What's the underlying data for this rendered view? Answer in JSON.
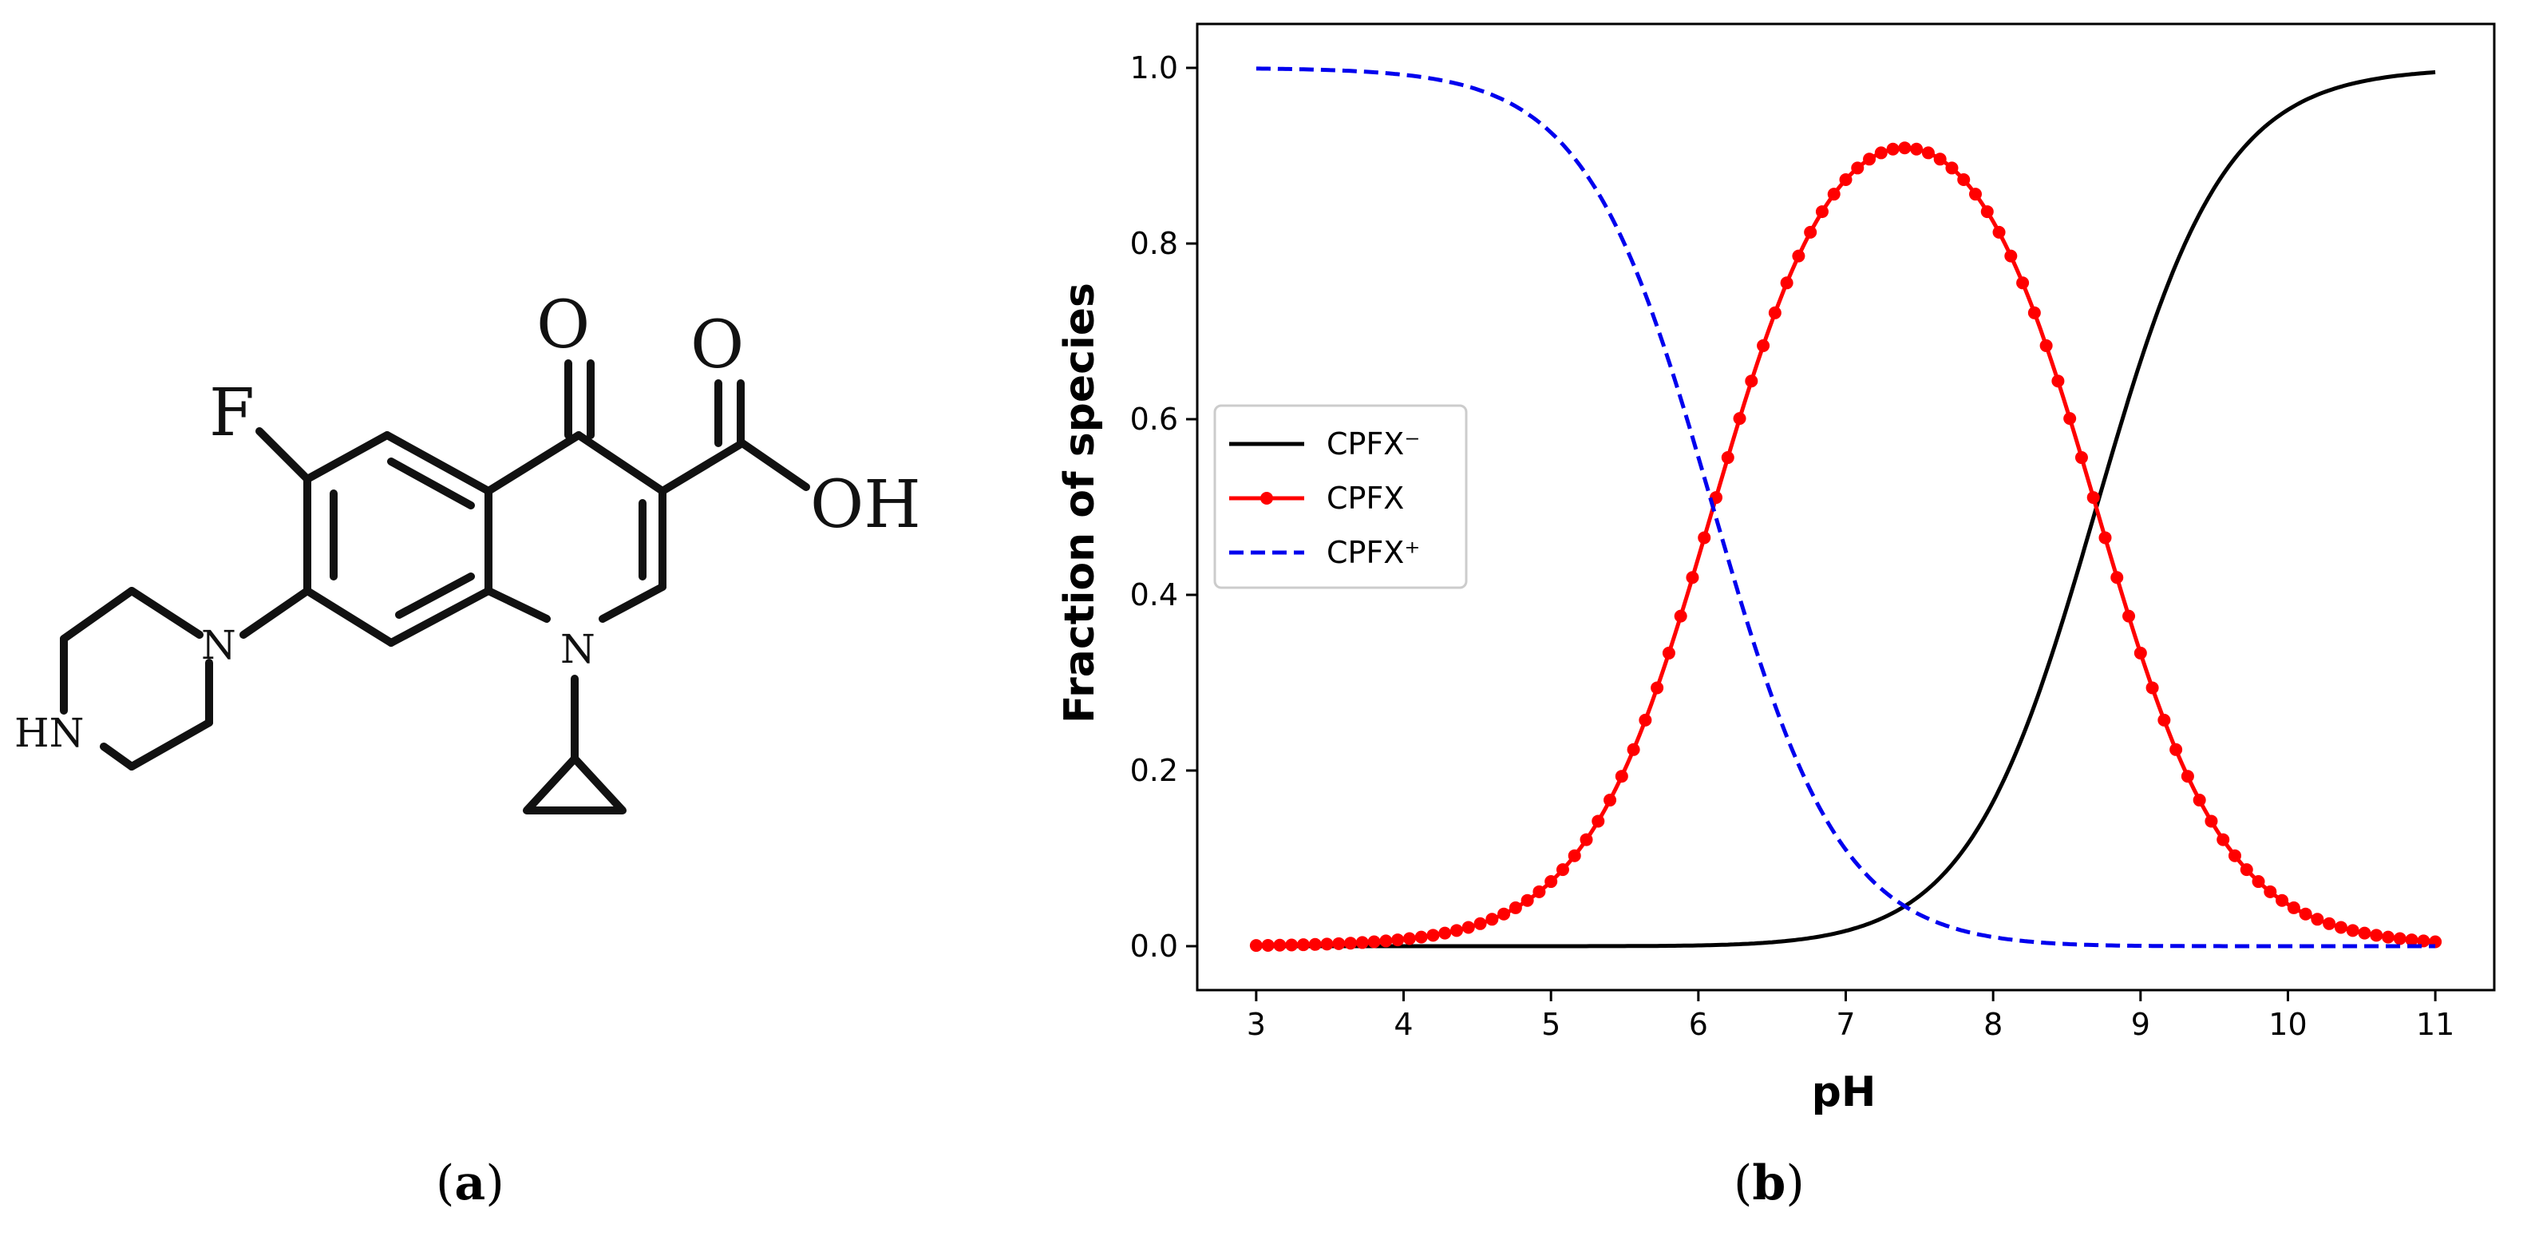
{
  "panel_a": {
    "label_open": "(",
    "letter": "a",
    "label_close": ")",
    "atoms": {
      "F": "F",
      "O_ketone": "O",
      "O_acid": "O",
      "OH": "OH",
      "N_pip": "N",
      "HN": "HN",
      "N_ring": "N"
    }
  },
  "panel_b": {
    "label_open": "(",
    "letter": "b",
    "label_close": ")"
  },
  "chart_data": {
    "type": "line",
    "title": "",
    "xlabel": "pH",
    "ylabel": "Fraction of species",
    "xlim": [
      2.6,
      11.4
    ],
    "ylim": [
      -0.05,
      1.05
    ],
    "x_ticks": [
      "3",
      "4",
      "5",
      "6",
      "7",
      "8",
      "9",
      "10",
      "11"
    ],
    "y_ticks": [
      "0.0",
      "0.2",
      "0.4",
      "0.6",
      "0.8",
      "1.0"
    ],
    "grid": false,
    "legend_position": "center-left",
    "pKa1": 6.1,
    "pKa2": 8.7,
    "x": [
      3.0,
      3.5,
      4.0,
      4.5,
      5.0,
      5.5,
      6.0,
      6.1,
      6.5,
      7.0,
      7.4,
      7.5,
      8.0,
      8.5,
      8.7,
      9.0,
      9.5,
      10.0,
      10.5,
      11.0
    ],
    "series": [
      {
        "name": "CPFX⁻",
        "color": "#000000",
        "style": "solid",
        "markers": false,
        "values": [
          0.0,
          0.0,
          0.0,
          0.0,
          0.0,
          0.0,
          0.0,
          0.0,
          0.01,
          0.02,
          0.05,
          0.06,
          0.17,
          0.38,
          0.5,
          0.67,
          0.86,
          0.95,
          0.98,
          0.995
        ]
      },
      {
        "name": "CPFX",
        "color": "#ff0000",
        "style": "solid",
        "markers": true,
        "values": [
          0.001,
          0.003,
          0.008,
          0.025,
          0.074,
          0.2,
          0.44,
          0.5,
          0.71,
          0.87,
          0.908,
          0.905,
          0.82,
          0.61,
          0.5,
          0.33,
          0.14,
          0.048,
          0.016,
          0.005
        ]
      },
      {
        "name": "CPFX⁺",
        "color": "#0000ee",
        "style": "dashed",
        "markers": false,
        "values": [
          0.999,
          0.997,
          0.992,
          0.975,
          0.926,
          0.8,
          0.56,
          0.5,
          0.28,
          0.11,
          0.045,
          0.035,
          0.01,
          0.003,
          0.002,
          0.001,
          0.0,
          0.0,
          0.0,
          0.0
        ]
      }
    ]
  }
}
